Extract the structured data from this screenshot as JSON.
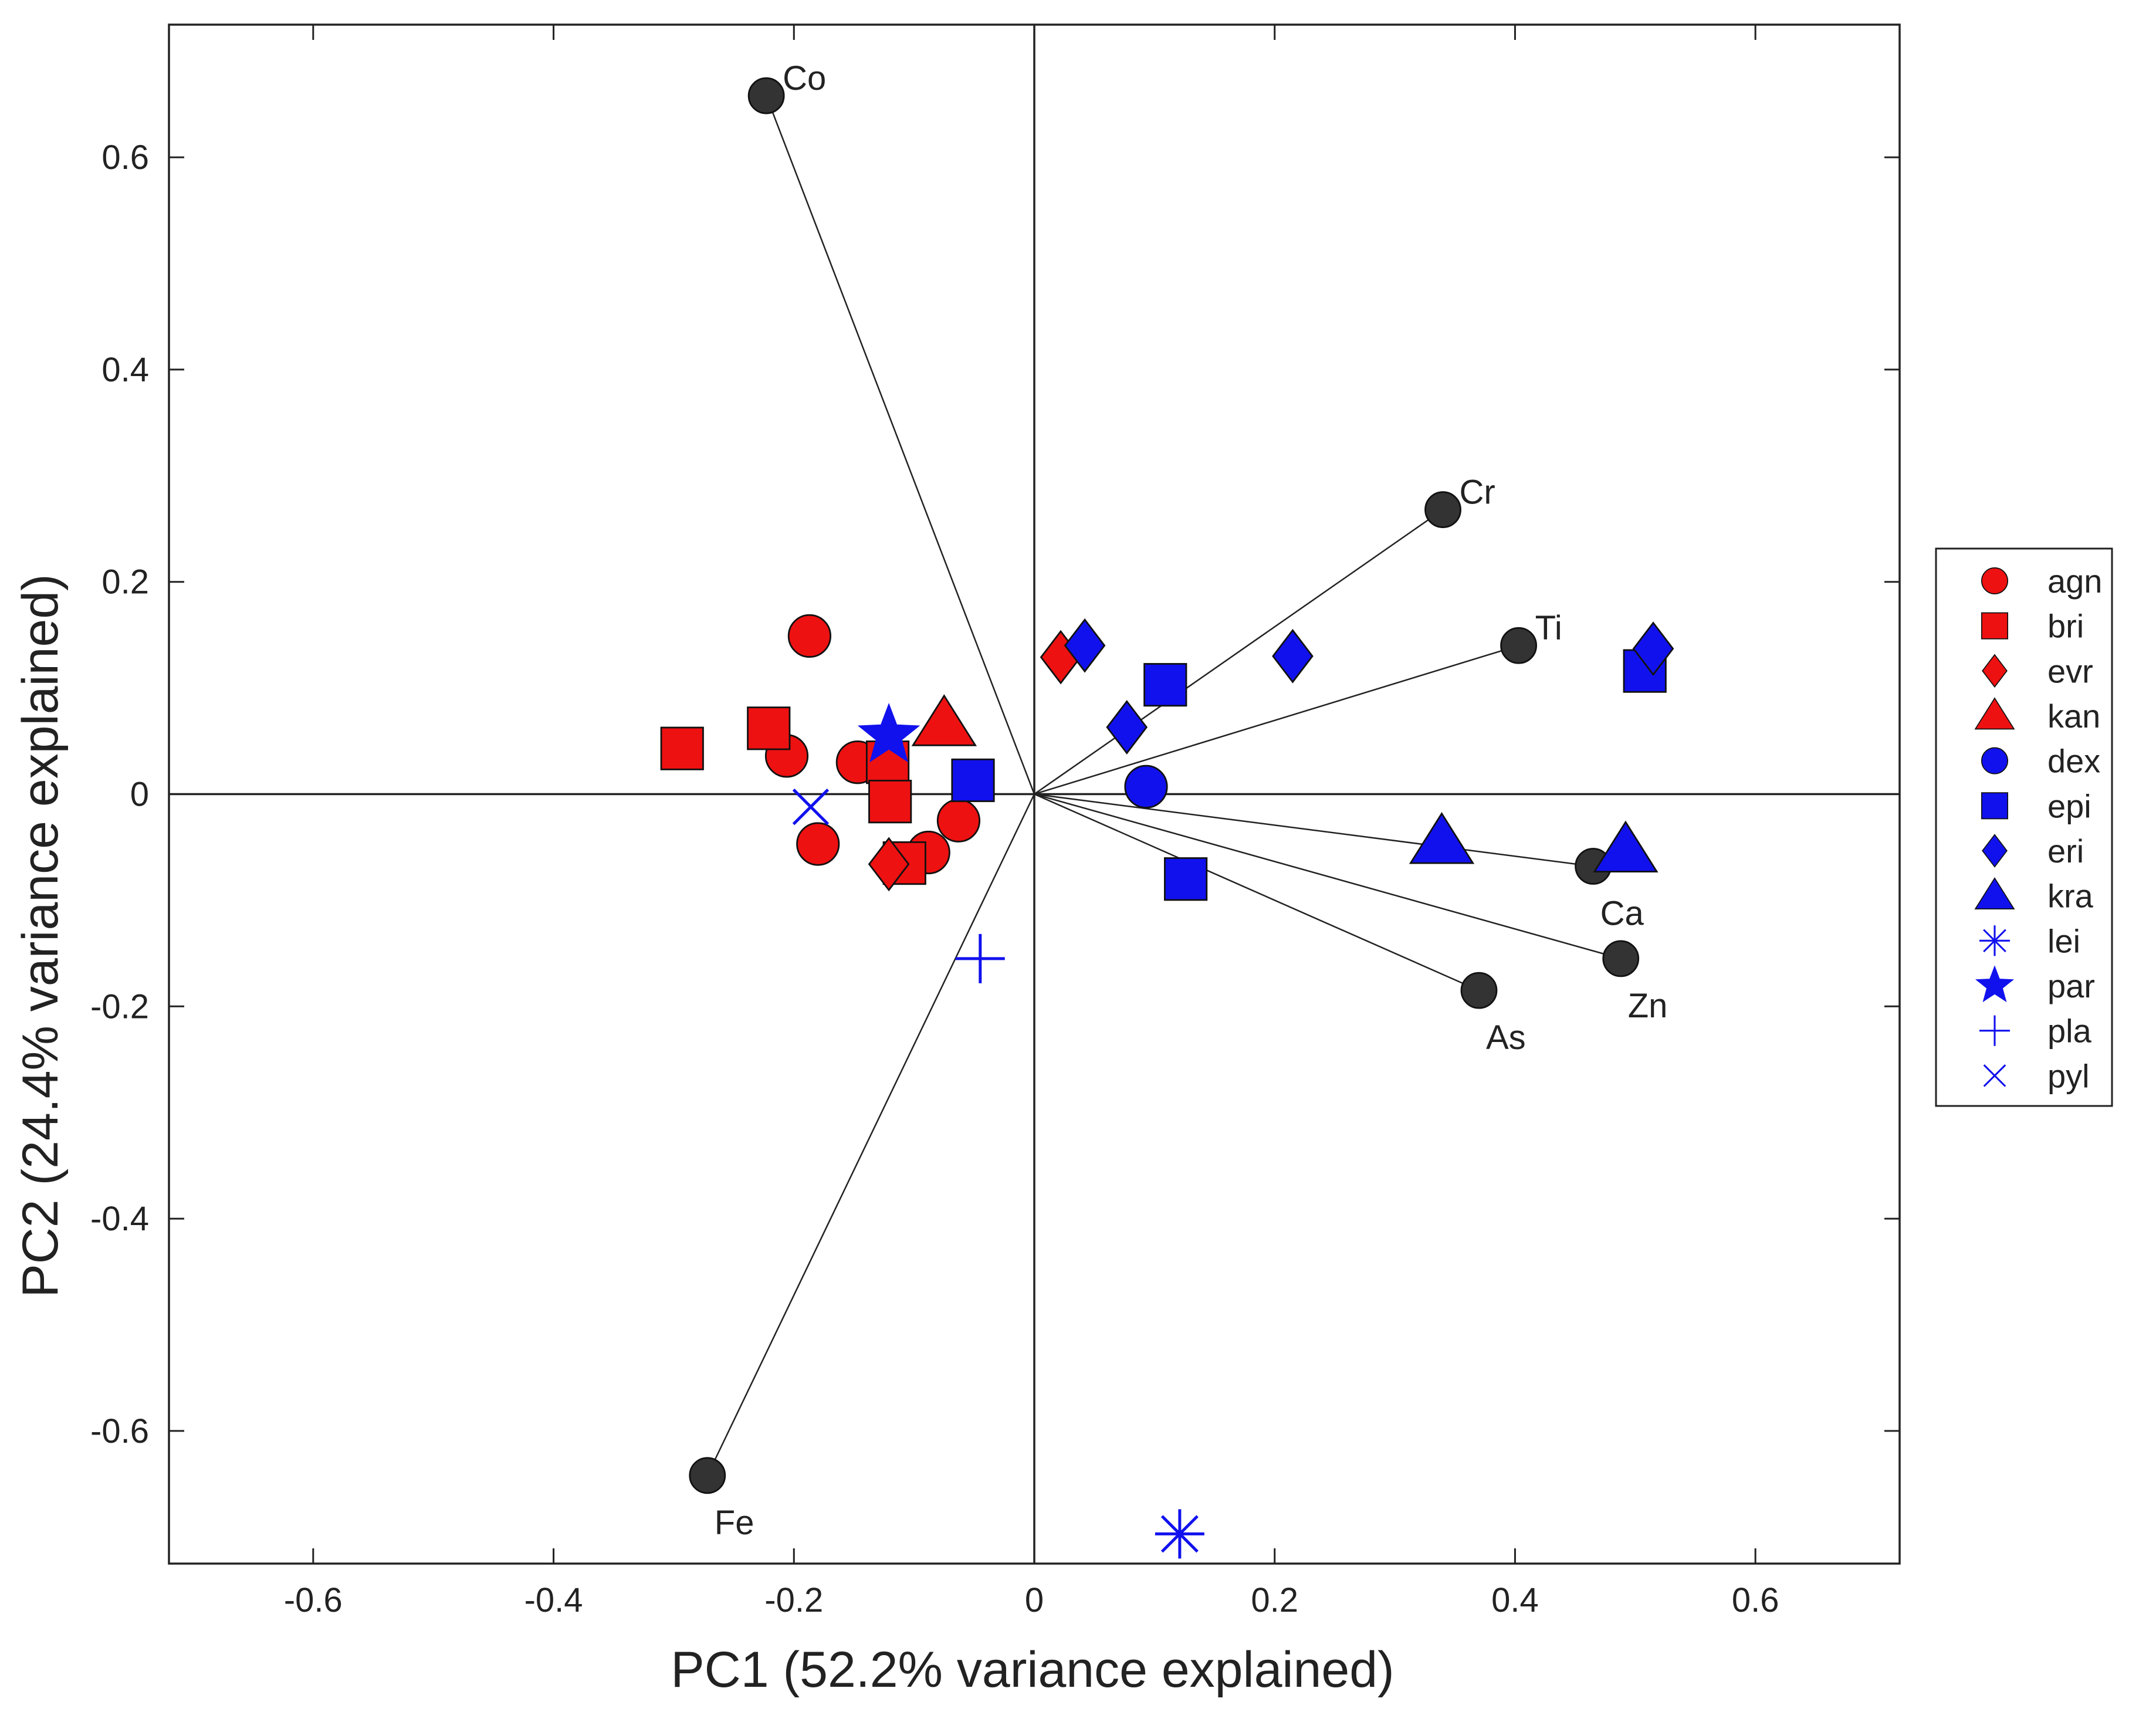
{
  "chart_data": {
    "type": "scatter",
    "subtype": "pca-biplot",
    "title": "",
    "xlabel": "PC1 (52.2% variance explained)",
    "ylabel": "PC2 (24.4% variance explained)",
    "xlim": [
      -0.72,
      0.72
    ],
    "ylim": [
      -0.725,
      0.725
    ],
    "xticks": [
      -0.6,
      -0.4,
      -0.2,
      0,
      0.2,
      0.4,
      0.6
    ],
    "xtick_labels": [
      "-0.6",
      "-0.4",
      "-0.2",
      "0",
      "0.2",
      "0.4",
      "0.6"
    ],
    "yticks": [
      -0.6,
      -0.4,
      -0.2,
      0,
      0.2,
      0.4,
      0.6
    ],
    "ytick_labels": [
      "-0.6",
      "-0.4",
      "-0.2",
      "0",
      "0.2",
      "0.4",
      "0.6"
    ],
    "grid": false,
    "legend_position": "outside-right",
    "colors": {
      "red": "#ee1111",
      "blue": "#1111ee",
      "loading": "#333333"
    },
    "loadings": [
      {
        "name": "Co",
        "x": -0.223,
        "y": 0.658,
        "label_pos": "upper-right"
      },
      {
        "name": "Cr",
        "x": 0.34,
        "y": 0.268,
        "label_pos": "upper-right"
      },
      {
        "name": "Ti",
        "x": 0.403,
        "y": 0.14,
        "label_pos": "upper-right"
      },
      {
        "name": "Ca",
        "x": 0.465,
        "y": -0.068,
        "label_pos": "lower-right"
      },
      {
        "name": "Zn",
        "x": 0.488,
        "y": -0.155,
        "label_pos": "lower-right"
      },
      {
        "name": "As",
        "x": 0.37,
        "y": -0.185,
        "label_pos": "lower-right"
      },
      {
        "name": "Fe",
        "x": -0.272,
        "y": -0.642,
        "label_pos": "lower-right"
      }
    ],
    "series": [
      {
        "name": "agn",
        "marker": "circle",
        "color": "red",
        "points": [
          [
            -0.187,
            0.149
          ],
          [
            -0.206,
            0.036
          ],
          [
            -0.147,
            0.03
          ],
          [
            -0.18,
            -0.047
          ],
          [
            -0.088,
            -0.055
          ],
          [
            -0.063,
            -0.025
          ]
        ]
      },
      {
        "name": "bri",
        "marker": "square",
        "color": "red",
        "points": [
          [
            -0.293,
            0.043
          ],
          [
            -0.221,
            0.062
          ],
          [
            -0.122,
            0.03
          ],
          [
            -0.12,
            -0.007
          ],
          [
            -0.108,
            -0.065
          ]
        ]
      },
      {
        "name": "evr",
        "marker": "diamond",
        "color": "red",
        "points": [
          [
            0.022,
            0.129
          ],
          [
            -0.121,
            -0.066
          ]
        ]
      },
      {
        "name": "kan",
        "marker": "triangle",
        "color": "red",
        "points": [
          [
            -0.075,
            0.066
          ]
        ]
      },
      {
        "name": "dex",
        "marker": "circle",
        "color": "blue",
        "points": [
          [
            0.093,
            0.007
          ]
        ]
      },
      {
        "name": "epi",
        "marker": "square",
        "color": "blue",
        "points": [
          [
            0.109,
            0.103
          ],
          [
            -0.051,
            0.013
          ],
          [
            0.126,
            -0.08
          ],
          [
            0.508,
            0.116
          ]
        ]
      },
      {
        "name": "eri",
        "marker": "diamond",
        "color": "blue",
        "points": [
          [
            0.042,
            0.14
          ],
          [
            0.077,
            0.063
          ],
          [
            0.215,
            0.13
          ],
          [
            0.515,
            0.137
          ]
        ]
      },
      {
        "name": "kra",
        "marker": "triangle",
        "color": "blue",
        "points": [
          [
            0.339,
            -0.045
          ],
          [
            0.492,
            -0.053
          ]
        ]
      },
      {
        "name": "lei",
        "marker": "asterisk",
        "color": "blue",
        "points": [
          [
            0.121,
            -0.697
          ]
        ]
      },
      {
        "name": "par",
        "marker": "star",
        "color": "blue",
        "points": [
          [
            -0.121,
            0.055
          ]
        ]
      },
      {
        "name": "pla",
        "marker": "plus",
        "color": "blue",
        "points": [
          [
            -0.045,
            -0.155
          ]
        ]
      },
      {
        "name": "pyl",
        "marker": "x",
        "color": "blue",
        "points": [
          [
            -0.186,
            -0.012
          ]
        ]
      }
    ]
  }
}
